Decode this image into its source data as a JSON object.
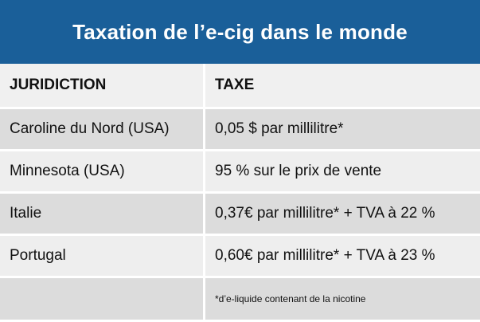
{
  "title": "Taxation de l’e-cig dans le monde",
  "colors": {
    "header_bg": "#1a5f99",
    "header_text": "#ffffff",
    "row_dark": "#dcdcdc",
    "row_light": "#eeeeee"
  },
  "table": {
    "headers": [
      "JURIDICTION",
      "TAXE"
    ],
    "rows": [
      [
        "Caroline du Nord (USA)",
        "0,05 $ par millilitre*"
      ],
      [
        "Minnesota (USA)",
        "95 % sur le prix de vente"
      ],
      [
        "Italie",
        "0,37€ par millilitre* + TVA à 22 %"
      ],
      [
        "Portugal",
        "0,60€ par millilitre* + TVA à 23 %"
      ]
    ],
    "footnote": "*d’e-liquide contenant de la nicotine"
  }
}
